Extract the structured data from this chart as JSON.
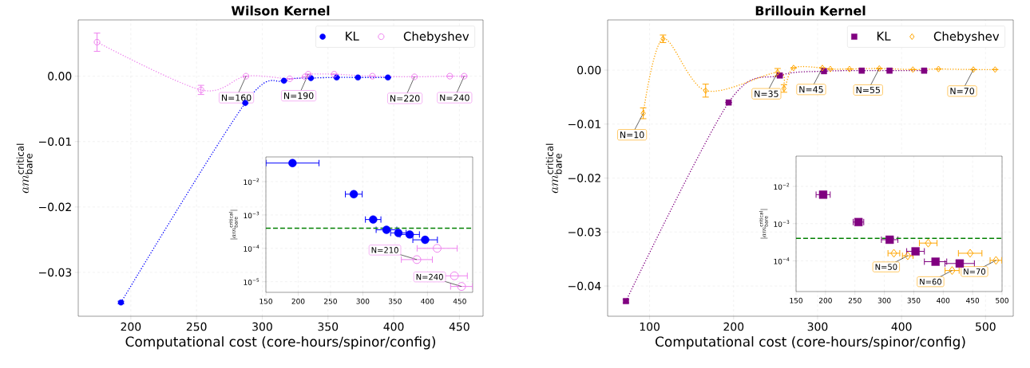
{
  "chart_data": [
    {
      "type": "line",
      "title": "Wilson Kernel",
      "xlabel": "Computational cost (core-hours/spinor/config)",
      "ylabel": "am^{\\mathrm{critical}}_{\\mathrm{bare}}",
      "xlim": [
        160,
        468
      ],
      "ylim": [
        -0.0367,
        0.0086
      ],
      "xticks": [
        200,
        250,
        300,
        350,
        400,
        450
      ],
      "yticks": [
        {
          "value": -0.03,
          "label": "−0.03"
        },
        {
          "value": -0.02,
          "label": "−0.02"
        },
        {
          "value": -0.01,
          "label": "−0.01"
        },
        {
          "value": 0.0,
          "label": "0.00"
        }
      ],
      "grid": true,
      "legend": "top right",
      "series": [
        {
          "name": "KL",
          "color": "#0000ff",
          "marker": "circle",
          "line_style": "dotted",
          "x": [
            192.5,
            287.1,
            316.5,
            337,
            356.6,
            372.8,
            395.6
          ],
          "values": [
            -0.0346,
            -0.0041,
            -0.0007,
            -0.0003,
            -0.0002,
            -0.0002,
            -0.0002
          ],
          "errors": [
            0.0002,
            null,
            null,
            null,
            null,
            null,
            null
          ]
        },
        {
          "name": "Chebyshev",
          "color": "#ee82ee",
          "marker": "circle",
          "line_style": "dotted",
          "x": [
            174.3,
            253.4,
            287.6,
            320.9,
            332.5,
            335,
            354.7,
            383.8,
            415.8,
            442.7,
            453.6
          ],
          "values": [
            0.0052,
            -0.0021,
            0.0,
            -0.0004,
            -0.0001,
            0.0003,
            0.0003,
            0.0,
            -0.0001,
            0.0,
            0.0
          ],
          "errors": [
            0.0014,
            0.0007,
            null,
            null,
            null,
            null,
            null,
            null,
            null,
            null,
            null
          ]
        }
      ],
      "annotations": [
        {
          "text": "N=160",
          "x": 287.6,
          "y": 0.0
        },
        {
          "text": "N=190",
          "x": 335,
          "y": 0.0003
        },
        {
          "text": "N=220",
          "x": 415.8,
          "y": -0.0001
        },
        {
          "text": "N=240",
          "x": 453.6,
          "y": 0.0
        }
      ]
    },
    {
      "type": "scatter",
      "ylabel": "|am^{\\mathrm{critical}}_{\\mathrm{bare}}|",
      "log": "y",
      "xlim": [
        150,
        470
      ],
      "ylim": [
        4.8e-06,
        0.055
      ],
      "xticks": [
        150,
        200,
        250,
        300,
        350,
        400,
        450
      ],
      "yticks": [
        {
          "value": 1e-05,
          "label": "10$^{−5}$"
        },
        {
          "value": 0.0001,
          "label": "10$^{−4}$"
        },
        {
          "value": 0.001,
          "label": "10$^{−3}$"
        },
        {
          "value": 0.01,
          "label": "10$^{−2}$"
        }
      ],
      "grid": true,
      "ref_lines": [
        {
          "axis": "y",
          "value": 0.0004,
          "color": "#008000",
          "line_style": "dashed"
        }
      ],
      "series": [
        {
          "color": "#0000ff",
          "marker": "circle",
          "x": [
            191.2,
            286,
            316,
            336.6,
            355,
            372.6,
            396.4
          ],
          "values": [
            0.036,
            0.0042,
            0.00073,
            0.00036,
            0.00029,
            0.00026,
            0.00018
          ],
          "xerrors": [
            41,
            13,
            12,
            16,
            12,
            15,
            19
          ]
        },
        {
          "color": "#ee82ee",
          "marker": "circle",
          "x": [
            383.6,
            415,
            441.7,
            452.8
          ],
          "values": [
            4.6e-05,
            0.0001,
            1.5e-05,
            7.2e-06
          ],
          "xerrors": [
            24,
            31,
            20,
            17
          ]
        }
      ],
      "annotations": [
        {
          "text": "N=210",
          "x": 383.6,
          "y": 4.6e-05
        },
        {
          "text": "N=240",
          "x": 452.8,
          "y": 7.2e-06
        }
      ]
    },
    {
      "type": "line",
      "title": "Brillouin Kernel",
      "xlabel": "Computational cost (core-hours/spinor/config)",
      "ylabel": "am^{\\mathrm{critical}}_{\\mathrm{bare}}",
      "xlim": [
        50,
        533
      ],
      "ylim": [
        -0.0456,
        0.0093
      ],
      "xticks": [
        100,
        200,
        300,
        400,
        500
      ],
      "yticks": [
        {
          "value": -0.04,
          "label": "−0.04"
        },
        {
          "value": -0.03,
          "label": "−0.03"
        },
        {
          "value": -0.02,
          "label": "−0.02"
        },
        {
          "value": -0.01,
          "label": "−0.01"
        },
        {
          "value": 0.0,
          "label": "0.00"
        }
      ],
      "grid": true,
      "legend": "top right",
      "series": [
        {
          "name": "KL",
          "color": "#800080",
          "marker": "square",
          "line_style": "dotted",
          "x": [
            71.8,
            194.1,
            255,
            307.6,
            352.6,
            385.7,
            426.9
          ],
          "values": [
            -0.0428,
            -0.006,
            -0.001,
            -0.0002,
            -0.0001,
            -0.0001,
            -0.0001
          ],
          "errors": [
            0.0003,
            null,
            null,
            null,
            null,
            null,
            null
          ]
        },
        {
          "name": "Chebyshev",
          "color": "#ffa500",
          "marker": "diamond",
          "line_style": "dotted",
          "x": [
            92.4,
            116,
            166.7,
            252.4,
            260,
            271.4,
            305.7,
            315.2,
            338,
            373.5,
            413.5,
            444,
            485.5,
            511.4
          ],
          "values": [
            -0.008,
            0.0058,
            -0.0038,
            -0.0004,
            -0.0034,
            0.0004,
            0.0004,
            0.0002,
            0.0002,
            0.0003,
            0.0001,
            0.0002,
            0.0001,
            0.0001
          ],
          "errors": [
            0.001,
            0.0007,
            0.0012,
            0.0007,
            0.0007,
            null,
            null,
            null,
            null,
            null,
            null,
            null,
            null,
            null
          ]
        }
      ],
      "annotations": [
        {
          "text": "N=10",
          "x": 92.4,
          "y": -0.008
        },
        {
          "text": "N=35",
          "x": 252.4,
          "y": -0.0004
        },
        {
          "text": "N=45",
          "x": 305.7,
          "y": 0.0004
        },
        {
          "text": "N=55",
          "x": 373.5,
          "y": 0.0003
        },
        {
          "text": "N=70",
          "x": 485.5,
          "y": 0.0001
        }
      ]
    },
    {
      "type": "scatter",
      "ylabel": "|am^{\\mathrm{critical}}_{\\mathrm{bare}}|",
      "log": "y",
      "xlim": [
        150,
        500
      ],
      "ylim": [
        1.5e-05,
        0.065
      ],
      "xticks": [
        150,
        200,
        250,
        300,
        350,
        400,
        450,
        500
      ],
      "yticks": [
        {
          "value": 0.0001,
          "label": "10$^{−4}$"
        },
        {
          "value": 0.001,
          "label": "10$^{−3}$"
        },
        {
          "value": 0.01,
          "label": "10$^{−2}$"
        }
      ],
      "grid": true,
      "ref_lines": [
        {
          "axis": "y",
          "value": 0.0004,
          "color": "#008000",
          "line_style": "dashed"
        }
      ],
      "series": [
        {
          "color": "#800080",
          "marker": "square",
          "x": [
            196,
            256,
            309,
            353,
            387,
            428
          ],
          "values": [
            0.006,
            0.0011,
            0.00037,
            0.00018,
            9.5e-05,
            8.5e-05
          ],
          "xerrors": [
            12,
            9,
            14,
            15,
            19,
            25
          ]
        },
        {
          "color": "#ffa500",
          "marker": "diamond",
          "x": [
            316.2,
            339.7,
            374.5,
            415.1,
            445.8,
            489.7
          ],
          "values": [
            0.00016,
            0.000137,
            0.0003,
            5.5e-05,
            0.00016,
            0.000103
          ],
          "xerrors": [
            10,
            9,
            15,
            12,
            20,
            10
          ]
        }
      ],
      "annotations": [
        {
          "text": "N=50",
          "x": 339.7,
          "y": 0.000137
        },
        {
          "text": "N=60",
          "x": 415.1,
          "y": 5.5e-05
        },
        {
          "text": "N=70",
          "x": 489.7,
          "y": 0.000103
        }
      ]
    }
  ]
}
